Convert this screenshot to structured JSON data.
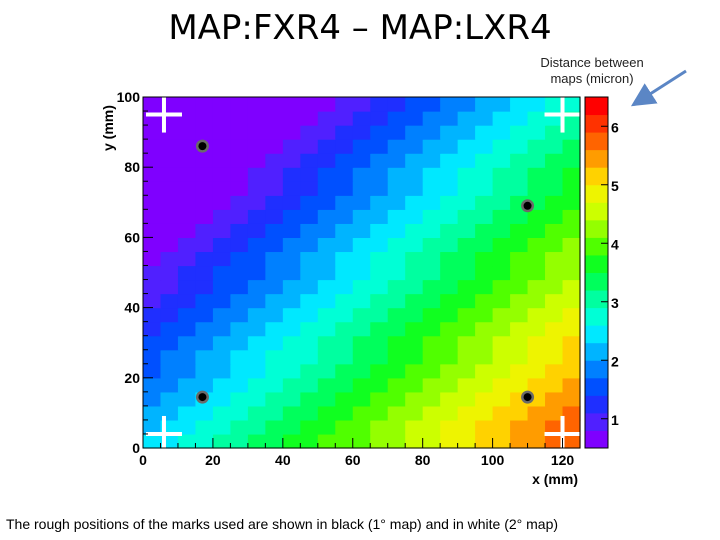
{
  "slide": {
    "title": "MAP:FXR4 – MAP:LXR4",
    "annotation": "Distance between maps (micron)",
    "caption": "The rough positions of the marks used are shown in black (1° map) and in white (2° map)"
  },
  "colors": {
    "arrow": "#5b86c5",
    "palette": [
      "#7f00ff",
      "#5020ff",
      "#1f2fff",
      "#0050ff",
      "#0080ff",
      "#00b4ff",
      "#00e8ff",
      "#00ffd6",
      "#00ffa0",
      "#00ff5c",
      "#10ff20",
      "#50ff00",
      "#94ff00",
      "#ccff00",
      "#eef400",
      "#ffd200",
      "#ff9c00",
      "#ff6400",
      "#ff3200",
      "#ff0000"
    ]
  },
  "chart_data": {
    "type": "heatmap",
    "xlabel": "x (mm)",
    "ylabel": "y (mm)",
    "xlim": [
      0,
      125
    ],
    "ylim": [
      0,
      100
    ],
    "zlim": [
      0.5,
      6.5
    ],
    "x_ticks": [
      0,
      20,
      40,
      60,
      80,
      100,
      120
    ],
    "y_ticks": [
      0,
      20,
      40,
      60,
      80,
      100
    ],
    "z_ticks": [
      1,
      2,
      3,
      4,
      5,
      6
    ],
    "grid": false,
    "colorbar": "right",
    "cells": {
      "nx": 25,
      "ny": 25
    },
    "field": {
      "z_at_origin": 2.3,
      "dz_per_mm_x": 0.0298,
      "dz_per_mm_y": -0.0314
    },
    "marks_black": [
      {
        "x": 17,
        "y": 86
      },
      {
        "x": 110,
        "y": 69
      },
      {
        "x": 17,
        "y": 14.5
      },
      {
        "x": 110,
        "y": 14.5
      }
    ],
    "marks_white": [
      {
        "x": 6,
        "y": 95
      },
      {
        "x": 120,
        "y": 95
      },
      {
        "x": 6,
        "y": 4
      },
      {
        "x": 120,
        "y": 4
      }
    ]
  }
}
